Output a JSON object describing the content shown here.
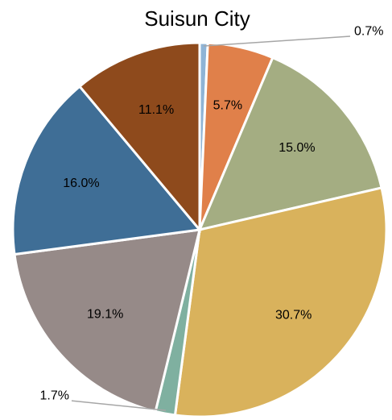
{
  "chart_data": {
    "type": "pie",
    "title": "Suisun City",
    "values": [
      0.7,
      5.7,
      15.0,
      30.7,
      1.7,
      19.1,
      16.0,
      11.1
    ],
    "value_labels": [
      "0.7%",
      "5.7%",
      "15.0%",
      "30.7%",
      "1.7%",
      "19.1%",
      "16.0%",
      "11.1%"
    ],
    "colors": [
      "#8fb4d6",
      "#e0804a",
      "#a4ad82",
      "#d9b25c",
      "#7fb0a0",
      "#968a88",
      "#3f6e96",
      "#8e4a1c"
    ]
  }
}
